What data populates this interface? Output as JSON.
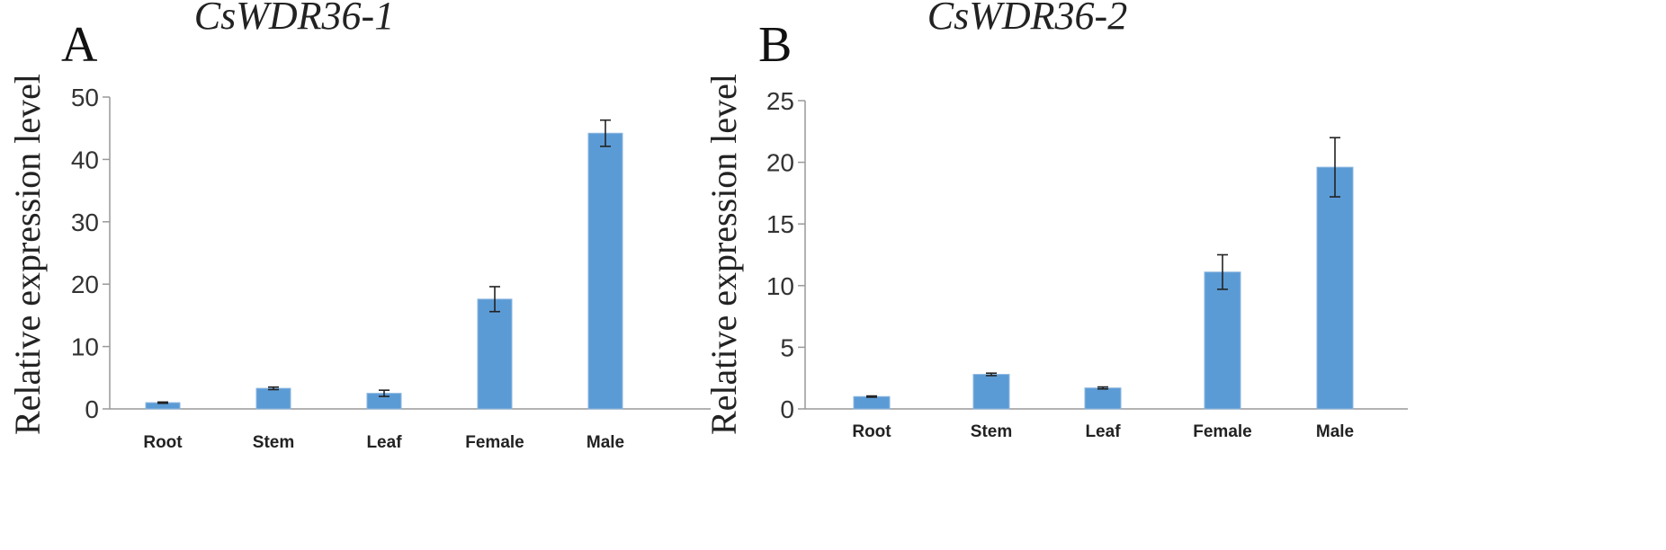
{
  "chart_data": [
    {
      "type": "bar",
      "panel": "A",
      "title": "CsWDR36-1",
      "ylabel": "Relative expression level",
      "xlabel": "",
      "categories": [
        "Root",
        "Stem",
        "Leaf",
        "Female",
        "Male"
      ],
      "values": [
        1.0,
        3.3,
        2.5,
        17.6,
        44.2
      ],
      "errors": [
        0.1,
        0.2,
        0.5,
        2.0,
        2.1
      ],
      "ylim": [
        0,
        50
      ],
      "yticks": [
        "0",
        "10",
        "20",
        "30",
        "40",
        "50"
      ],
      "color": "#5b9bd5",
      "grid": false,
      "legend": "none"
    },
    {
      "type": "bar",
      "panel": "B",
      "title": "CsWDR36-2",
      "ylabel": "Relative expression level",
      "xlabel": "",
      "categories": [
        "Root",
        "Stem",
        "Leaf",
        "Female",
        "Male"
      ],
      "values": [
        1.0,
        2.8,
        1.7,
        11.1,
        19.6
      ],
      "errors": [
        0.05,
        0.1,
        0.08,
        1.4,
        2.4
      ],
      "ylim": [
        0,
        25
      ],
      "yticks": [
        "0",
        "5",
        "10",
        "15",
        "20",
        "25"
      ],
      "color": "#5b9bd5",
      "grid": false,
      "legend": "none"
    }
  ]
}
